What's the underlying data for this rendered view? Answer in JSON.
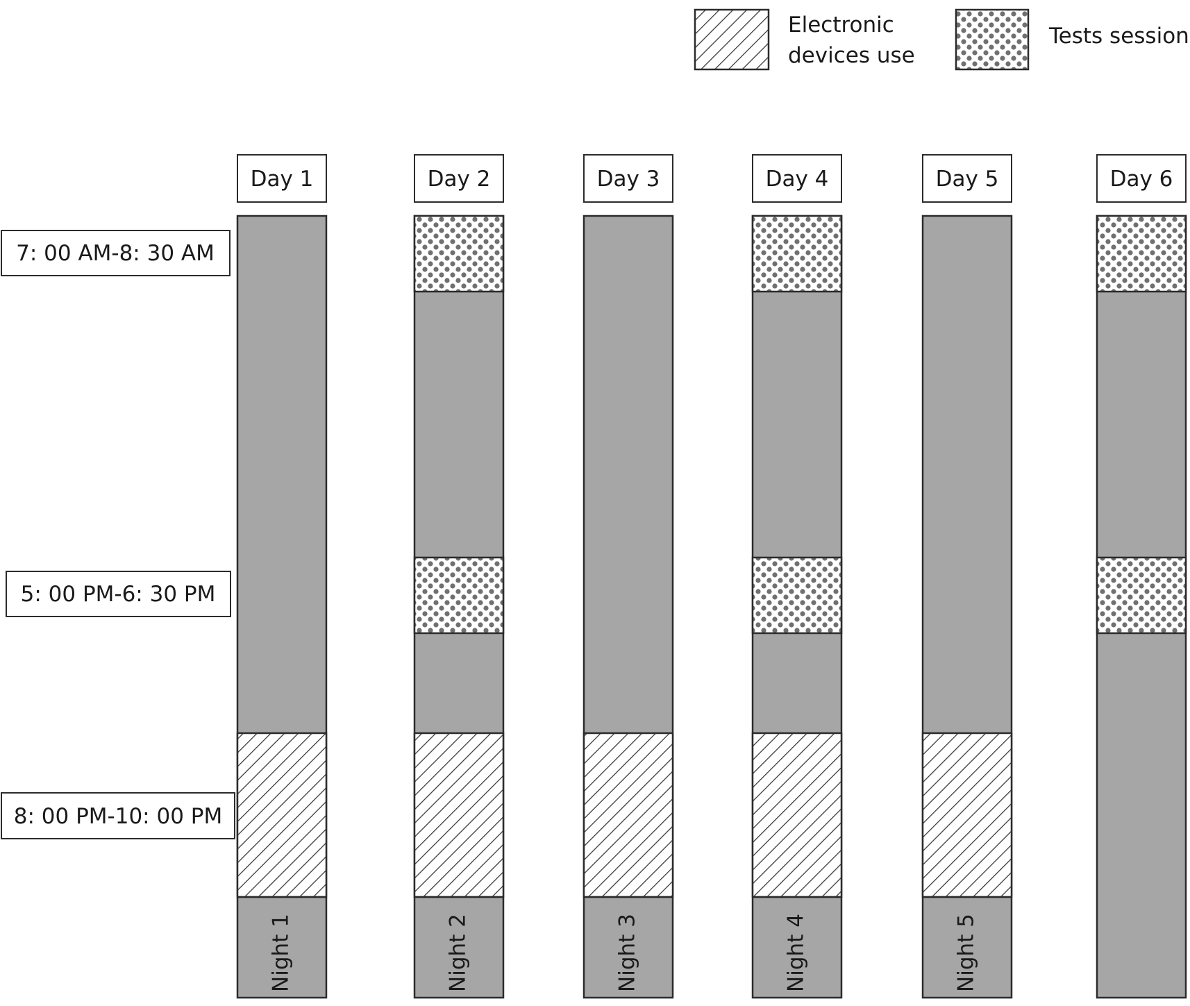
{
  "legend": {
    "electronic": "Electronic\ndevices use",
    "tests": "Tests session"
  },
  "time_labels": [
    "7: 00 AM-8: 30 AM",
    "5: 00 PM-6: 30 PM",
    "8: 00 PM-10: 00 PM"
  ],
  "days": [
    {
      "label": "Day 1",
      "night": "Night 1",
      "morning_test": false,
      "afternoon_test": false,
      "electronic": true
    },
    {
      "label": "Day 2",
      "night": "Night 2",
      "morning_test": true,
      "afternoon_test": true,
      "electronic": true
    },
    {
      "label": "Day 3",
      "night": "Night 3",
      "morning_test": false,
      "afternoon_test": false,
      "electronic": true
    },
    {
      "label": "Day 4",
      "night": "Night 4",
      "morning_test": true,
      "afternoon_test": true,
      "electronic": true
    },
    {
      "label": "Day 5",
      "night": "Night 5",
      "morning_test": false,
      "afternoon_test": false,
      "electronic": true
    },
    {
      "label": "Day 6",
      "night": "",
      "morning_test": true,
      "afternoon_test": true,
      "electronic": false
    }
  ],
  "colors": {
    "bar_fill": "#a6a6a6",
    "border": "#2b2b2b",
    "dot": "#707070",
    "hatch": "#3a3a3a"
  }
}
